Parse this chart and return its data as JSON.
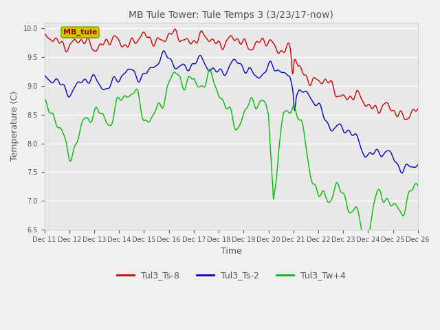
{
  "title": "MB Tule Tower: Tule Temps 3 (3/23/17-now)",
  "xlabel": "Time",
  "ylabel": "Temperature (C)",
  "ylim": [
    6.5,
    10.1
  ],
  "ytick_values": [
    6.5,
    7.0,
    7.5,
    8.0,
    8.5,
    9.0,
    9.5,
    10.0
  ],
  "xtick_labels": [
    "Dec 11",
    "Dec 12",
    "Dec 13",
    "Dec 14",
    "Dec 15",
    "Dec 16",
    "Dec 17",
    "Dec 18",
    "Dec 19",
    "Dec 20",
    "Dec 21",
    "Dec 22",
    "Dec 23",
    "Dec 24",
    "Dec 25",
    "Dec 26"
  ],
  "legend_labels": [
    "Tul3_Ts-8",
    "Tul3_Ts-2",
    "Tul3_Tw+4"
  ],
  "legend_colors": [
    "#cc0000",
    "#0000cc",
    "#00bb00"
  ],
  "line_width": 1.0,
  "fig_bg": "#f0f0f0",
  "axes_bg": "#e8e8e8",
  "grid_color": "#ffffff",
  "annotation_box_text": "MB_tule",
  "annotation_box_facecolor": "#cccc00",
  "annotation_box_edgecolor": "#999900",
  "annotation_text_color": "#aa0000",
  "title_color": "#555555",
  "label_color": "#555555",
  "tick_color": "#555555",
  "tick_fontsize": 7,
  "title_fontsize": 10,
  "label_fontsize": 9
}
